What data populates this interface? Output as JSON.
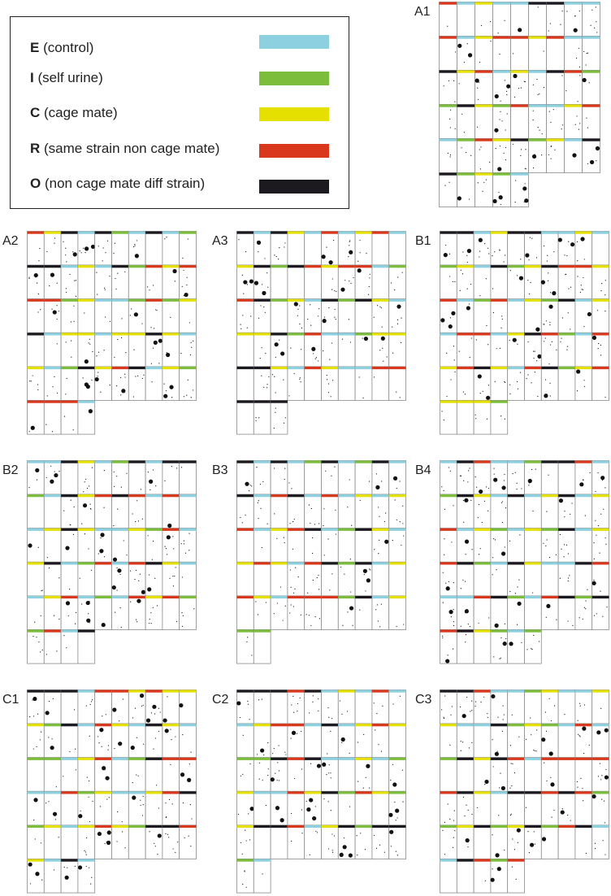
{
  "colors": {
    "E": "#8dd0df",
    "I": "#7cbd3c",
    "C": "#e5e000",
    "R": "#d9381c",
    "O": "#1c1a1e"
  },
  "legend": [
    {
      "code": "E",
      "text": " (control)"
    },
    {
      "code": "I",
      "text": " (self urine)"
    },
    {
      "code": "C",
      "text": " (cage mate)"
    },
    {
      "code": "R",
      "text": " (same strain non cage mate)"
    },
    {
      "code": "O",
      "text": " (non cage mate diff strain)"
    }
  ],
  "panels": [
    {
      "label": "A1",
      "rows": [
        [
          "R",
          "E",
          "C",
          "E",
          "E",
          "O",
          "O",
          "E",
          "E"
        ],
        [
          "R",
          "E",
          "C",
          "R",
          "R",
          "C",
          "R",
          "E",
          "E"
        ],
        [
          "O",
          "C",
          "R",
          "E",
          "C",
          "E",
          "O",
          "R",
          "I"
        ],
        [
          "I",
          "O",
          "C",
          "I",
          "R",
          "E",
          "E",
          "C",
          "R"
        ],
        [
          "E",
          "I",
          "R",
          "C",
          "O",
          "I",
          "C",
          "E",
          "O"
        ],
        [
          "O",
          "I",
          "C",
          "I",
          "E"
        ]
      ]
    },
    {
      "label": "A2",
      "rows": [
        [
          "R",
          "C",
          "O",
          "E",
          "O",
          "I",
          "E",
          "O",
          "E",
          "I"
        ],
        [
          "O",
          "O",
          "E",
          "C",
          "E",
          "O",
          "I",
          "R",
          "C",
          "R"
        ],
        [
          "R",
          "R",
          "I",
          "C",
          "E",
          "E",
          "I",
          "R",
          "I",
          "C"
        ],
        [
          "O",
          "E",
          "C",
          "C",
          "E",
          "C",
          "C",
          "O",
          "C",
          "E"
        ],
        [
          "C",
          "E",
          "I",
          "O",
          "C",
          "R",
          "O",
          "E",
          "C",
          "I"
        ],
        [
          "R",
          "R",
          "R",
          "E"
        ]
      ]
    },
    {
      "label": "A3",
      "rows": [
        [
          "O",
          "E",
          "O",
          "C",
          "E",
          "R",
          "E",
          "C",
          "R",
          "E"
        ],
        [
          "C",
          "O",
          "I",
          "O",
          "R",
          "C",
          "R",
          "R",
          "E",
          "I"
        ],
        [
          "R",
          "O",
          "I",
          "C",
          "E",
          "O",
          "I",
          "O",
          "C",
          "E"
        ],
        [
          "C",
          "C",
          "O",
          "I",
          "R",
          "E",
          "E",
          "I",
          "C",
          "C"
        ],
        [
          "O",
          "O",
          "C",
          "E",
          "R",
          "C",
          "E",
          "E",
          "R",
          "R"
        ],
        [
          "O",
          "O",
          "O"
        ]
      ]
    },
    {
      "label": "B1",
      "rows": [
        [
          "O",
          "O",
          "E",
          "C",
          "O",
          "O",
          "E",
          "E",
          "C",
          "E"
        ],
        [
          "I",
          "C",
          "E",
          "O",
          "I",
          "C",
          "O",
          "R",
          "R",
          "C"
        ],
        [
          "R",
          "E",
          "I",
          "R",
          "E",
          "C",
          "I",
          "O",
          "E",
          "C"
        ],
        [
          "E",
          "R",
          "R",
          "E",
          "C",
          "O",
          "R",
          "I",
          "E",
          "R"
        ],
        [
          "C",
          "R",
          "O",
          "C",
          "E",
          "R",
          "O",
          "I",
          "C",
          "R"
        ],
        [
          "C",
          "C",
          "C",
          "I"
        ]
      ]
    },
    {
      "label": "B2",
      "rows": [
        [
          "E",
          "E",
          "O",
          "C",
          "E",
          "I",
          "O",
          "E",
          "O",
          "O"
        ],
        [
          "I",
          "E",
          "O",
          "C",
          "R",
          "O",
          "R",
          "E",
          "R",
          "E"
        ],
        [
          "E",
          "C",
          "O",
          "C",
          "E",
          "E",
          "C",
          "I",
          "R",
          "E"
        ],
        [
          "C",
          "O",
          "E",
          "I",
          "R",
          "E",
          "R",
          "O",
          "C",
          "E"
        ],
        [
          "E",
          "C",
          "R",
          "E",
          "I",
          "E",
          "R",
          "C",
          "R",
          "I"
        ],
        [
          "I",
          "R",
          "E",
          "O"
        ]
      ]
    },
    {
      "label": "B3",
      "rows": [
        [
          "O",
          "E",
          "O",
          "E",
          "I",
          "O",
          "E",
          "I",
          "O",
          "E"
        ],
        [
          "O",
          "E",
          "R",
          "O",
          "E",
          "R",
          "E",
          "C",
          "E",
          "C"
        ],
        [
          "R",
          "E",
          "C",
          "R",
          "O",
          "E",
          "I",
          "O",
          "C",
          "E"
        ],
        [
          "C",
          "R",
          "C",
          "E",
          "R",
          "O",
          "I",
          "O",
          "E",
          "C"
        ],
        [
          "R",
          "C",
          "E",
          "R",
          "R",
          "R",
          "I",
          "O",
          "E",
          "C"
        ],
        [
          "I",
          "I"
        ]
      ]
    },
    {
      "label": "B4",
      "rows": [
        [
          "E",
          "O",
          "R",
          "E",
          "E",
          "I",
          "O",
          "O",
          "R",
          "E"
        ],
        [
          "I",
          "O",
          "C",
          "E",
          "O",
          "E",
          "C",
          "O",
          "E",
          "C"
        ],
        [
          "R",
          "E",
          "C",
          "I",
          "E",
          "C",
          "I",
          "O",
          "E",
          "C"
        ],
        [
          "R",
          "O",
          "I",
          "E",
          "O",
          "C",
          "E",
          "E",
          "O",
          "R"
        ],
        [
          "E",
          "E",
          "R",
          "O",
          "I",
          "E",
          "R",
          "O",
          "I",
          "O"
        ],
        [
          "R",
          "O",
          "C",
          "I",
          "E",
          "I"
        ]
      ]
    },
    {
      "label": "C1",
      "rows": [
        [
          "O",
          "O",
          "O",
          "E",
          "R",
          "R",
          "C",
          "R",
          "C",
          "C"
        ],
        [
          "C",
          "I",
          "O",
          "E",
          "R",
          "C",
          "E",
          "O",
          "C",
          "E"
        ],
        [
          "I",
          "I",
          "E",
          "C",
          "R",
          "E",
          "I",
          "O",
          "R",
          "R"
        ],
        [
          "E",
          "E",
          "R",
          "I",
          "C",
          "E",
          "E",
          "C",
          "R",
          "O"
        ],
        [
          "I",
          "C",
          "E",
          "C",
          "R",
          "C",
          "I",
          "O",
          "O",
          "R"
        ],
        [
          "C",
          "E",
          "O",
          "E"
        ]
      ]
    },
    {
      "label": "C2",
      "rows": [
        [
          "O",
          "O",
          "O",
          "R",
          "O",
          "E",
          "C",
          "E",
          "R",
          "E"
        ],
        [
          "E",
          "C",
          "R",
          "R",
          "E",
          "O",
          "E",
          "C",
          "R",
          "C"
        ],
        [
          "I",
          "I",
          "O",
          "R",
          "O",
          "E",
          "E",
          "C",
          "E",
          "I"
        ],
        [
          "C",
          "E",
          "E",
          "R",
          "C",
          "O",
          "I",
          "R",
          "C",
          "I"
        ],
        [
          "C",
          "O",
          "O",
          "R",
          "E",
          "C",
          "O",
          "I",
          "O",
          "O"
        ],
        [
          "I",
          "E"
        ]
      ]
    },
    {
      "label": "C3",
      "rows": [
        [
          "O",
          "O",
          "R",
          "E",
          "E",
          "I",
          "C",
          "E",
          "E",
          "C"
        ],
        [
          "C",
          "E",
          "E",
          "O",
          "I",
          "C",
          "I",
          "E",
          "R",
          "E"
        ],
        [
          "I",
          "O",
          "C",
          "O",
          "R",
          "E",
          "R",
          "R",
          "R",
          "R"
        ],
        [
          "R",
          "O",
          "C",
          "E",
          "O",
          "O",
          "R",
          "O",
          "R",
          "I"
        ],
        [
          "I",
          "C",
          "O",
          "I",
          "C",
          "O",
          "I",
          "R",
          "O",
          "E"
        ],
        [
          "E",
          "O",
          "R",
          "I",
          "R"
        ]
      ]
    }
  ]
}
